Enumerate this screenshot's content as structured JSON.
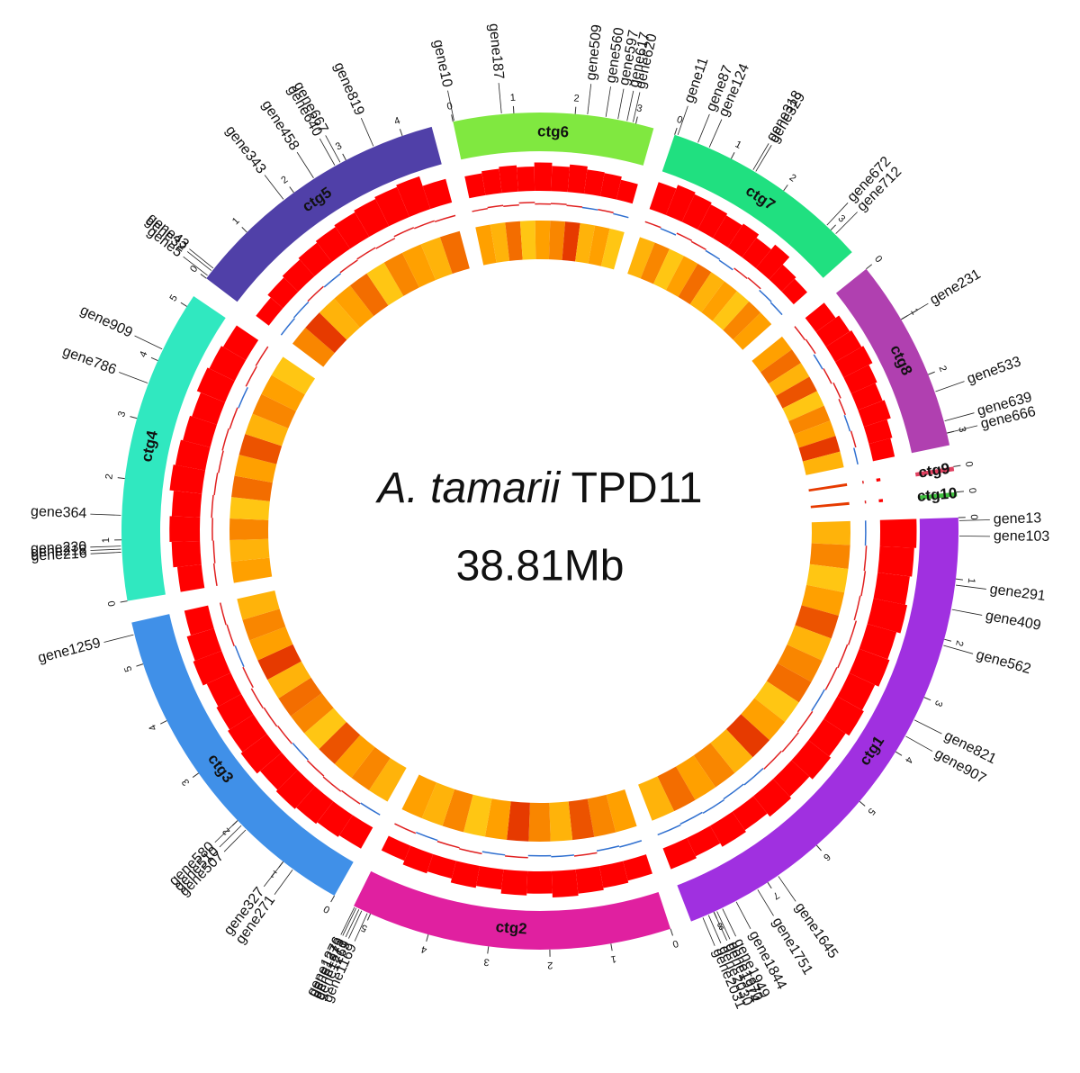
{
  "chart_data": {
    "type": "circos",
    "title_species": "A. tamarii",
    "title_strain": "TPD11",
    "genome_size": "38.81Mb",
    "histogram_color": "#ff0000",
    "line_color_high": "#e02020",
    "line_color_low": "#3070d0",
    "heatmap_colors": [
      "#ffff30",
      "#ffa000",
      "#e02000"
    ],
    "contigs": [
      {
        "name": "ctg6",
        "length": 3.3,
        "color": "#80e840",
        "ticks": [
          0,
          1,
          2,
          3
        ],
        "genes": [
          {
            "label": "gene10",
            "pos": 0.02
          },
          {
            "label": "gene187",
            "pos": 0.8
          },
          {
            "label": "gene509",
            "pos": 2.2
          },
          {
            "label": "gene560",
            "pos": 2.5
          },
          {
            "label": "gene597",
            "pos": 2.7
          },
          {
            "label": "gene617",
            "pos": 2.85
          },
          {
            "label": "gene620",
            "pos": 2.95
          }
        ],
        "hist": [
          0.55,
          0.6,
          0.65,
          0.6,
          0.7,
          0.62,
          0.68,
          0.6,
          0.58,
          0.5
        ],
        "gc": [
          0.5,
          0.55,
          0.5,
          0.6,
          0.52,
          0.55,
          0.5,
          0.48,
          0.5,
          0.45
        ],
        "heat": [
          0.5,
          0.4,
          0.7,
          0.3,
          0.5,
          0.6,
          0.9,
          0.4,
          0.5,
          0.3
        ]
      },
      {
        "name": "ctg7",
        "length": 3.5,
        "color": "#20e080",
        "ticks": [
          0,
          1,
          2,
          3
        ],
        "genes": [
          {
            "label": "gene11",
            "pos": 0.05
          },
          {
            "label": "gene87",
            "pos": 0.4
          },
          {
            "label": "gene124",
            "pos": 0.6
          },
          {
            "label": "gene318",
            "pos": 1.4
          },
          {
            "label": "gene329",
            "pos": 1.45
          },
          {
            "label": "gene672",
            "pos": 2.9
          },
          {
            "label": "gene712",
            "pos": 3.1
          }
        ],
        "hist": [
          0.7,
          0.8,
          0.75,
          0.7,
          0.65,
          0.7,
          0.6,
          0.75,
          0.5,
          0.45
        ],
        "gc": [
          0.5,
          0.45,
          0.55,
          0.5,
          0.45,
          0.4,
          0.5,
          0.55,
          0.45,
          0.4
        ],
        "heat": [
          0.4,
          0.6,
          0.3,
          0.5,
          0.7,
          0.4,
          0.5,
          0.3,
          0.6,
          0.5
        ]
      },
      {
        "name": "ctg8",
        "length": 3.2,
        "color": "#b040b0",
        "ticks": [
          0,
          1,
          2,
          3
        ],
        "genes": [
          {
            "label": "gene231",
            "pos": 1.0
          },
          {
            "label": "gene533",
            "pos": 2.3
          },
          {
            "label": "gene639",
            "pos": 2.8
          },
          {
            "label": "gene666",
            "pos": 3.0
          }
        ],
        "hist": [
          0.6,
          0.7,
          0.75,
          0.8,
          0.7,
          0.65,
          0.7,
          0.6,
          0.55
        ],
        "gc": [
          0.5,
          0.55,
          0.45,
          0.5,
          0.6,
          0.5,
          0.45,
          0.5,
          0.4
        ],
        "heat": [
          0.5,
          0.7,
          0.4,
          0.8,
          0.3,
          0.6,
          0.5,
          0.9,
          0.4
        ]
      },
      {
        "name": "ctg9",
        "length": 0.06,
        "color": "#e04060",
        "ticks": [
          0
        ],
        "genes": [],
        "hist": [
          0.1
        ],
        "gc": [
          0.5
        ],
        "heat": [
          0.9
        ]
      },
      {
        "name": "ctg10",
        "length": 0.06,
        "color": "#40c040",
        "ticks": [
          0
        ],
        "genes": [],
        "hist": [
          0.1
        ],
        "gc": [
          0.5
        ],
        "heat": [
          0.9
        ]
      },
      {
        "name": "ctg1",
        "length": 8.4,
        "color": "#a030e0",
        "ticks": [
          0,
          1,
          2,
          3,
          4,
          5,
          6,
          7,
          8
        ],
        "genes": [
          {
            "label": "gene13",
            "pos": 0.05
          },
          {
            "label": "gene103",
            "pos": 0.3
          },
          {
            "label": "gene291",
            "pos": 1.1
          },
          {
            "label": "gene409",
            "pos": 1.5
          },
          {
            "label": "gene562",
            "pos": 2.1
          },
          {
            "label": "gene821",
            "pos": 3.4
          },
          {
            "label": "gene907",
            "pos": 3.7
          },
          {
            "label": "gene1645",
            "pos": 6.8
          },
          {
            "label": "gene1751",
            "pos": 7.2
          },
          {
            "label": "gene1844",
            "pos": 7.6
          },
          {
            "label": "gene1949",
            "pos": 7.85
          },
          {
            "label": "gene1970",
            "pos": 7.95
          },
          {
            "label": "gene1974",
            "pos": 8.0
          },
          {
            "label": "gene2030",
            "pos": 8.1
          },
          {
            "label": "gene2031",
            "pos": 8.2
          }
        ],
        "hist": [
          0.9,
          0.85,
          0.8,
          0.85,
          0.75,
          0.8,
          0.7,
          0.75,
          0.65,
          0.7,
          0.6,
          0.65,
          0.55,
          0.6,
          0.5,
          0.55
        ],
        "gc": [
          0.45,
          0.5,
          0.55,
          0.5,
          0.6,
          0.55,
          0.5,
          0.45,
          0.5,
          0.55,
          0.5,
          0.45,
          0.4,
          0.45,
          0.4,
          0.45
        ],
        "heat": [
          0.4,
          0.6,
          0.3,
          0.5,
          0.8,
          0.4,
          0.6,
          0.7,
          0.3,
          0.5,
          0.9,
          0.4,
          0.6,
          0.5,
          0.7,
          0.4
        ]
      },
      {
        "name": "ctg2",
        "length": 5.3,
        "color": "#e020a0",
        "ticks": [
          0,
          1,
          2,
          3,
          4,
          5
        ],
        "genes": [
          {
            "label": "gene1169",
            "pos": 5.05
          },
          {
            "label": "gene1269",
            "pos": 5.15
          },
          {
            "label": "gene1271",
            "pos": 5.2
          },
          {
            "label": "gene1273",
            "pos": 5.25
          },
          {
            "label": "gene1276",
            "pos": 5.28
          }
        ],
        "hist": [
          0.5,
          0.55,
          0.6,
          0.65,
          0.55,
          0.6,
          0.5,
          0.55,
          0.45,
          0.5,
          0.4
        ],
        "gc": [
          0.45,
          0.4,
          0.5,
          0.45,
          0.4,
          0.5,
          0.45,
          0.55,
          0.5,
          0.45,
          0.5
        ],
        "heat": [
          0.5,
          0.6,
          0.8,
          0.4,
          0.6,
          0.9,
          0.5,
          0.3,
          0.6,
          0.4,
          0.5
        ]
      },
      {
        "name": "ctg3",
        "length": 5.7,
        "color": "#4090e8",
        "ticks": [
          0,
          1,
          2,
          3,
          4,
          5
        ],
        "genes": [
          {
            "label": "gene271",
            "pos": 0.8
          },
          {
            "label": "gene327",
            "pos": 1.0
          },
          {
            "label": "gene507",
            "pos": 1.8
          },
          {
            "label": "gene510",
            "pos": 1.9
          },
          {
            "label": "gene580",
            "pos": 2.0
          },
          {
            "label": "gene1259",
            "pos": 5.5
          }
        ],
        "hist": [
          0.6,
          0.65,
          0.7,
          0.75,
          0.7,
          0.8,
          0.75,
          0.7,
          0.65,
          0.75,
          0.7,
          0.6
        ],
        "gc": [
          0.45,
          0.5,
          0.55,
          0.5,
          0.45,
          0.5,
          0.55,
          0.6,
          0.5,
          0.45,
          0.5,
          0.55
        ],
        "heat": [
          0.4,
          0.6,
          0.5,
          0.8,
          0.3,
          0.6,
          0.7,
          0.4,
          0.9,
          0.5,
          0.6,
          0.4
        ]
      },
      {
        "name": "ctg4",
        "length": 5.2,
        "color": "#30e8c0",
        "ticks": [
          0,
          1,
          2,
          3,
          4,
          5
        ],
        "genes": [
          {
            "label": "gene216",
            "pos": 0.8
          },
          {
            "label": "gene218",
            "pos": 0.85
          },
          {
            "label": "gene230",
            "pos": 0.9
          },
          {
            "label": "gene364",
            "pos": 1.4
          },
          {
            "label": "gene786",
            "pos": 3.6
          },
          {
            "label": "gene909",
            "pos": 4.2
          }
        ],
        "hist": [
          0.6,
          0.7,
          0.75,
          0.7,
          0.8,
          0.75,
          0.7,
          0.65,
          0.75,
          0.7,
          0.65
        ],
        "gc": [
          0.55,
          0.5,
          0.55,
          0.6,
          0.55,
          0.5,
          0.55,
          0.5,
          0.45,
          0.55,
          0.6
        ],
        "heat": [
          0.5,
          0.4,
          0.6,
          0.3,
          0.7,
          0.5,
          0.8,
          0.4,
          0.6,
          0.5,
          0.3
        ]
      },
      {
        "name": "ctg5",
        "length": 4.5,
        "color": "#5040a8",
        "ticks": [
          0,
          1,
          2,
          3,
          4
        ],
        "genes": [
          {
            "label": "gene5",
            "pos": 0.05
          },
          {
            "label": "gene32",
            "pos": 0.15
          },
          {
            "label": "gene43",
            "pos": 0.2
          },
          {
            "label": "gene343",
            "pos": 1.8
          },
          {
            "label": "gene458",
            "pos": 2.4
          },
          {
            "label": "gene640",
            "pos": 2.8
          },
          {
            "label": "gene667",
            "pos": 2.9
          },
          {
            "label": "gene819",
            "pos": 3.5
          }
        ],
        "hist": [
          0.4,
          0.5,
          0.55,
          0.6,
          0.65,
          0.7,
          0.75,
          0.8,
          0.85,
          0.6
        ],
        "gc": [
          0.4,
          0.45,
          0.5,
          0.45,
          0.5,
          0.55,
          0.5,
          0.6,
          0.55,
          0.5
        ],
        "heat": [
          0.6,
          0.9,
          0.4,
          0.5,
          0.7,
          0.3,
          0.6,
          0.5,
          0.4,
          0.7
        ]
      }
    ]
  }
}
